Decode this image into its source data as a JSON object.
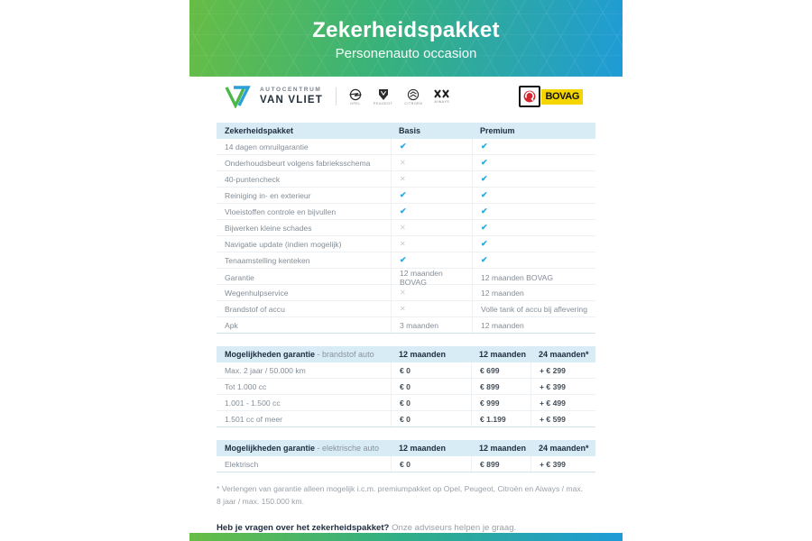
{
  "banner": {
    "title": "Zekerheidspakket",
    "subtitle": "Personenauto occasion"
  },
  "logos": {
    "dealer_top": "AUTOCENTRUM",
    "dealer_name": "VAN VLIET",
    "brands": [
      "Opel",
      "Peugeot",
      "Citroën",
      "Aiways"
    ],
    "bovag": "BOVAG"
  },
  "package_table": {
    "header": {
      "label": "Zekerheidspakket",
      "col1": "Basis",
      "col2": "Premium"
    },
    "rows": [
      {
        "label": "14 dagen omruilgarantie",
        "basis": "check",
        "premium": "check"
      },
      {
        "label": "Onderhoudsbeurt volgens fabrieksschema",
        "basis": "cross",
        "premium": "check"
      },
      {
        "label": "40-puntencheck",
        "basis": "cross",
        "premium": "check"
      },
      {
        "label": "Reiniging in- en exterieur",
        "basis": "check",
        "premium": "check"
      },
      {
        "label": "Vloeistoffen controle en bijvullen",
        "basis": "check",
        "premium": "check"
      },
      {
        "label": "Bijwerken kleine schades",
        "basis": "cross",
        "premium": "check"
      },
      {
        "label": "Navigatie update (indien mogelijk)",
        "basis": "cross",
        "premium": "check"
      },
      {
        "label": "Tenaamstelling kenteken",
        "basis": "check",
        "premium": "check"
      },
      {
        "label": "Garantie",
        "basis": "12 maanden BOVAG",
        "premium": "12 maanden BOVAG"
      },
      {
        "label": "Wegenhulpservice",
        "basis": "cross",
        "premium": "12 maanden"
      },
      {
        "label": "Brandstof of accu",
        "basis": "cross",
        "premium": "Volle tank of accu bij aflevering"
      },
      {
        "label": "Apk",
        "basis": "3 maanden",
        "premium": "12 maanden"
      }
    ]
  },
  "fuel_table": {
    "title": "Mogelijkheden garantie",
    "title_suffix": " - brandstof auto",
    "columns": [
      "12 maanden",
      "12 maanden",
      "24 maanden*"
    ],
    "rows": [
      {
        "label": "Max. 2 jaar / 50.000 km",
        "values": [
          "€ 0",
          "€ 699",
          "+ € 299"
        ]
      },
      {
        "label": "Tot 1.000 cc",
        "values": [
          "€ 0",
          "€ 899",
          "+ € 399"
        ]
      },
      {
        "label": "1.001 - 1.500 cc",
        "values": [
          "€ 0",
          "€ 999",
          "+ € 499"
        ]
      },
      {
        "label": "1.501 cc of meer",
        "values": [
          "€ 0",
          "€ 1.199",
          "+ € 599"
        ]
      }
    ]
  },
  "electric_table": {
    "title": "Mogelijkheden garantie",
    "title_suffix": " - elektrische auto",
    "columns": [
      "12 maanden",
      "12 maanden",
      "24 maanden*"
    ],
    "rows": [
      {
        "label": "Elektrisch",
        "values": [
          "€ 0",
          "€ 899",
          "+ € 399"
        ]
      }
    ]
  },
  "footnote": "* Verlengen van garantie alleen mogelijk i.c.m. premiumpakket op Opel, Peugeot, Citroën en Aiways / max. 8 jaar / max. 150.000 km.",
  "question": {
    "bold": "Heb je vragen over het zekerheidspakket?",
    "rest": " Onze adviseurs helpen je graag."
  },
  "colors": {
    "accent_green": "#67bd45",
    "accent_blue": "#1f9bd7",
    "check": "#29a8df",
    "cross": "#c8ccd1",
    "table_header_bg": "#d8ecf6",
    "bovag_yellow": "#f5d500",
    "bovag_red": "#d22730"
  }
}
